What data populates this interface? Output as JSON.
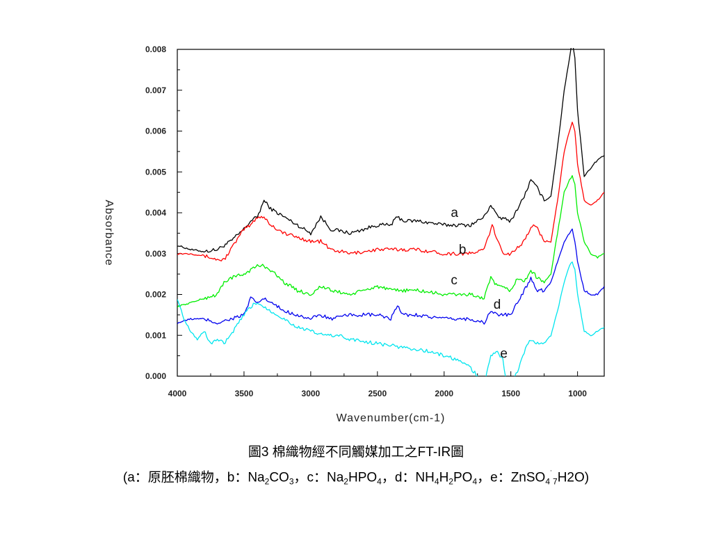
{
  "chart_data": {
    "type": "line",
    "xlabel": "Wavenumber(cm-1)",
    "ylabel": "Absorbance",
    "xlim": [
      4000,
      800
    ],
    "ylim": [
      0,
      0.008
    ],
    "x_ticks": [
      "4000",
      "3500",
      "3000",
      "2500",
      "2000",
      "1500",
      "1000"
    ],
    "y_ticks": [
      "0.000",
      "0.001",
      "0.002",
      "0.003",
      "0.004",
      "0.005",
      "0.006",
      "0.007",
      "0.008"
    ],
    "series": [
      {
        "name": "a",
        "color": "#000000",
        "x": [
          4000,
          3900,
          3800,
          3700,
          3600,
          3500,
          3450,
          3400,
          3350,
          3300,
          3200,
          3100,
          3000,
          2925,
          2850,
          2700,
          2500,
          2400,
          2350,
          2300,
          2200,
          2000,
          1900,
          1800,
          1700,
          1650,
          1600,
          1500,
          1450,
          1400,
          1350,
          1300,
          1250,
          1200,
          1150,
          1100,
          1060,
          1040,
          1020,
          1000,
          950,
          900,
          850,
          800
        ],
        "y": [
          0.0032,
          0.0031,
          0.00305,
          0.0031,
          0.0033,
          0.0036,
          0.0038,
          0.0039,
          0.0043,
          0.0041,
          0.0039,
          0.0037,
          0.0035,
          0.0039,
          0.0036,
          0.0035,
          0.0037,
          0.0037,
          0.0039,
          0.0038,
          0.0038,
          0.0037,
          0.0037,
          0.0037,
          0.0039,
          0.0042,
          0.0039,
          0.0038,
          0.0041,
          0.0044,
          0.0048,
          0.0046,
          0.0043,
          0.0044,
          0.0056,
          0.007,
          0.0078,
          0.0082,
          0.0078,
          0.0065,
          0.0049,
          0.0051,
          0.0053,
          0.0054
        ]
      },
      {
        "name": "b",
        "color": "#ff0000",
        "x": [
          4000,
          3900,
          3800,
          3700,
          3650,
          3600,
          3500,
          3450,
          3400,
          3350,
          3300,
          3200,
          3100,
          3000,
          2925,
          2850,
          2700,
          2500,
          2350,
          2300,
          2200,
          2000,
          1900,
          1800,
          1700,
          1640,
          1600,
          1550,
          1500,
          1400,
          1340,
          1300,
          1250,
          1200,
          1150,
          1100,
          1060,
          1040,
          1020,
          1000,
          950,
          900,
          850,
          800
        ],
        "y": [
          0.003,
          0.003,
          0.00295,
          0.00285,
          0.00285,
          0.0031,
          0.0036,
          0.0037,
          0.0039,
          0.0039,
          0.0037,
          0.0035,
          0.0034,
          0.0033,
          0.0033,
          0.0031,
          0.003,
          0.0031,
          0.0031,
          0.0031,
          0.0031,
          0.003,
          0.003,
          0.003,
          0.0031,
          0.0037,
          0.0033,
          0.003,
          0.003,
          0.0033,
          0.0037,
          0.0036,
          0.0033,
          0.0033,
          0.0043,
          0.0055,
          0.006,
          0.0062,
          0.006,
          0.0052,
          0.0043,
          0.0042,
          0.0043,
          0.0045
        ]
      },
      {
        "name": "c",
        "color": "#00ee00",
        "x": [
          4000,
          3900,
          3800,
          3700,
          3650,
          3600,
          3500,
          3450,
          3400,
          3350,
          3300,
          3200,
          3100,
          3000,
          2925,
          2850,
          2700,
          2500,
          2400,
          2300,
          2200,
          2000,
          1900,
          1800,
          1700,
          1650,
          1600,
          1500,
          1450,
          1400,
          1350,
          1300,
          1250,
          1200,
          1150,
          1100,
          1060,
          1040,
          1020,
          1000,
          950,
          900,
          850,
          800
        ],
        "y": [
          0.0017,
          0.0018,
          0.0019,
          0.002,
          0.0023,
          0.0024,
          0.0025,
          0.0026,
          0.0027,
          0.0027,
          0.0026,
          0.0023,
          0.0021,
          0.002,
          0.0022,
          0.0021,
          0.002,
          0.0022,
          0.0021,
          0.0021,
          0.0021,
          0.002,
          0.002,
          0.002,
          0.0019,
          0.0024,
          0.0022,
          0.0021,
          0.0024,
          0.0023,
          0.0026,
          0.0024,
          0.0023,
          0.0025,
          0.0035,
          0.0045,
          0.0048,
          0.0049,
          0.0047,
          0.004,
          0.0033,
          0.003,
          0.0029,
          0.003
        ]
      },
      {
        "name": "d",
        "color": "#0000ee",
        "x": [
          4000,
          3900,
          3800,
          3700,
          3600,
          3500,
          3450,
          3400,
          3350,
          3300,
          3200,
          3100,
          3000,
          2925,
          2850,
          2700,
          2500,
          2400,
          2350,
          2300,
          2200,
          2000,
          1900,
          1800,
          1700,
          1650,
          1600,
          1500,
          1450,
          1400,
          1350,
          1300,
          1250,
          1200,
          1150,
          1100,
          1060,
          1040,
          1020,
          1000,
          950,
          900,
          850,
          800
        ],
        "y": [
          0.0013,
          0.0014,
          0.0014,
          0.0013,
          0.0014,
          0.0015,
          0.0019,
          0.0018,
          0.0019,
          0.0018,
          0.0016,
          0.0015,
          0.0014,
          0.0015,
          0.0014,
          0.0015,
          0.0015,
          0.0014,
          0.0017,
          0.0015,
          0.0015,
          0.0014,
          0.0014,
          0.0014,
          0.0013,
          0.0016,
          0.0015,
          0.0015,
          0.0018,
          0.0021,
          0.0024,
          0.0021,
          0.0021,
          0.0023,
          0.0028,
          0.0033,
          0.0035,
          0.0036,
          0.0033,
          0.0028,
          0.0021,
          0.002,
          0.002,
          0.0022
        ]
      },
      {
        "name": "e",
        "color": "#00e5ee",
        "x": [
          4000,
          3950,
          3900,
          3850,
          3800,
          3750,
          3700,
          3650,
          3600,
          3500,
          3450,
          3400,
          3350,
          3300,
          3200,
          3100,
          3000,
          2900,
          2800,
          2700,
          2500,
          2300,
          2100,
          1900,
          1800,
          1750,
          1700,
          1650,
          1600,
          1560,
          1520,
          1500,
          1450,
          1400,
          1350,
          1300,
          1250,
          1200,
          1150,
          1100,
          1060,
          1040,
          1020,
          1000,
          950,
          900,
          850,
          800
        ],
        "y": [
          0.0019,
          0.0014,
          0.0011,
          0.0009,
          0.0011,
          0.0008,
          0.0009,
          0.0008,
          0.001,
          0.0015,
          0.0017,
          0.0018,
          0.0017,
          0.0016,
          0.0014,
          0.0012,
          0.0011,
          0.001,
          0.001,
          0.0009,
          0.0008,
          0.0007,
          0.0006,
          0.0004,
          0.0002,
          0.0,
          -0.0002,
          0.0005,
          0.0006,
          0.0004,
          -0.0004,
          -0.0002,
          0.0001,
          0.0006,
          0.0009,
          0.0008,
          0.0008,
          0.001,
          0.0016,
          0.0023,
          0.0027,
          0.0028,
          0.0026,
          0.002,
          0.0011,
          0.001,
          0.0011,
          0.0012
        ]
      }
    ]
  },
  "caption": {
    "line1": "圖3 棉織物經不同觸媒加工之FT-IR圖",
    "line2_prefix": "(a：原胚棉織物，b：Na",
    "na2co3_sub": "2",
    "na2co3_co": "CO",
    "na2co3_sub2": "3",
    "c_part": "，c：Na",
    "hpo_sub1": "2",
    "hpo_mid": "HPO",
    "hpo_sub2": "4",
    "d_part": "，d：NH",
    "nh_sub1": "4",
    "nh_h": "H",
    "nh_sub2": "2",
    "nh_po": "PO",
    "nh_sub3": "4",
    "e_part": "，e：ZnSO",
    "zn_sub": "4",
    "zn_dot": "˙",
    "zn_sub7": "7",
    "zn_end": "H2O)"
  }
}
